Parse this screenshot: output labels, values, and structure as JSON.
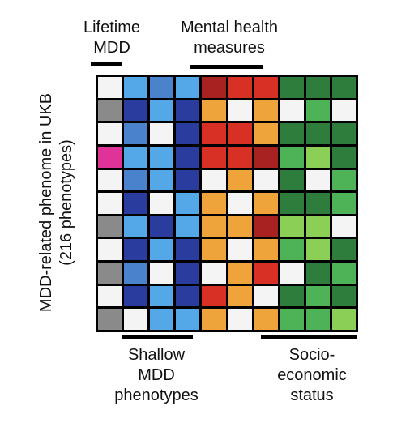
{
  "labels": {
    "lifetime": [
      "Lifetime",
      "MDD"
    ],
    "mental": [
      "Mental health",
      "measures"
    ],
    "shallow": [
      "Shallow",
      "MDD",
      "phenotypes"
    ],
    "socio": [
      "Socio-",
      "economic",
      "status"
    ],
    "y_axis": [
      "MDD-related phenome in UKB",
      "(216 phenotypes)"
    ]
  },
  "colors": {
    "W": "#f4f4f4",
    "G": "#8a8a8a",
    "P": "#e03399",
    "N": "#2a3c9e",
    "L": "#55a8e8",
    "M": "#4a82cc",
    "R": "#d83024",
    "D": "#a82222",
    "O": "#eea43b",
    "E": "#2e7d3c",
    "F": "#4db356",
    "H": "#8ccf56"
  },
  "matrix": [
    [
      "W",
      "L",
      "M",
      "L",
      "D",
      "R",
      "R",
      "E",
      "E",
      "E"
    ],
    [
      "G",
      "N",
      "L",
      "N",
      "O",
      "W",
      "O",
      "W",
      "F",
      "W"
    ],
    [
      "W",
      "M",
      "W",
      "N",
      "R",
      "R",
      "O",
      "E",
      "E",
      "E"
    ],
    [
      "P",
      "L",
      "L",
      "N",
      "R",
      "R",
      "D",
      "F",
      "H",
      "E"
    ],
    [
      "W",
      "M",
      "L",
      "N",
      "W",
      "O",
      "W",
      "E",
      "W",
      "F"
    ],
    [
      "W",
      "N",
      "W",
      "L",
      "O",
      "W",
      "O",
      "E",
      "E",
      "F"
    ],
    [
      "G",
      "L",
      "N",
      "L",
      "O",
      "O",
      "D",
      "H",
      "H",
      "W"
    ],
    [
      "W",
      "N",
      "L",
      "N",
      "O",
      "W",
      "O",
      "F",
      "H",
      "E"
    ],
    [
      "G",
      "M",
      "W",
      "N",
      "W",
      "O",
      "R",
      "W",
      "E",
      "F"
    ],
    [
      "W",
      "N",
      "L",
      "N",
      "R",
      "O",
      "W",
      "E",
      "F",
      "E"
    ],
    [
      "G",
      "W",
      "L",
      "L",
      "O",
      "W",
      "O",
      "F",
      "F",
      "H"
    ]
  ]
}
